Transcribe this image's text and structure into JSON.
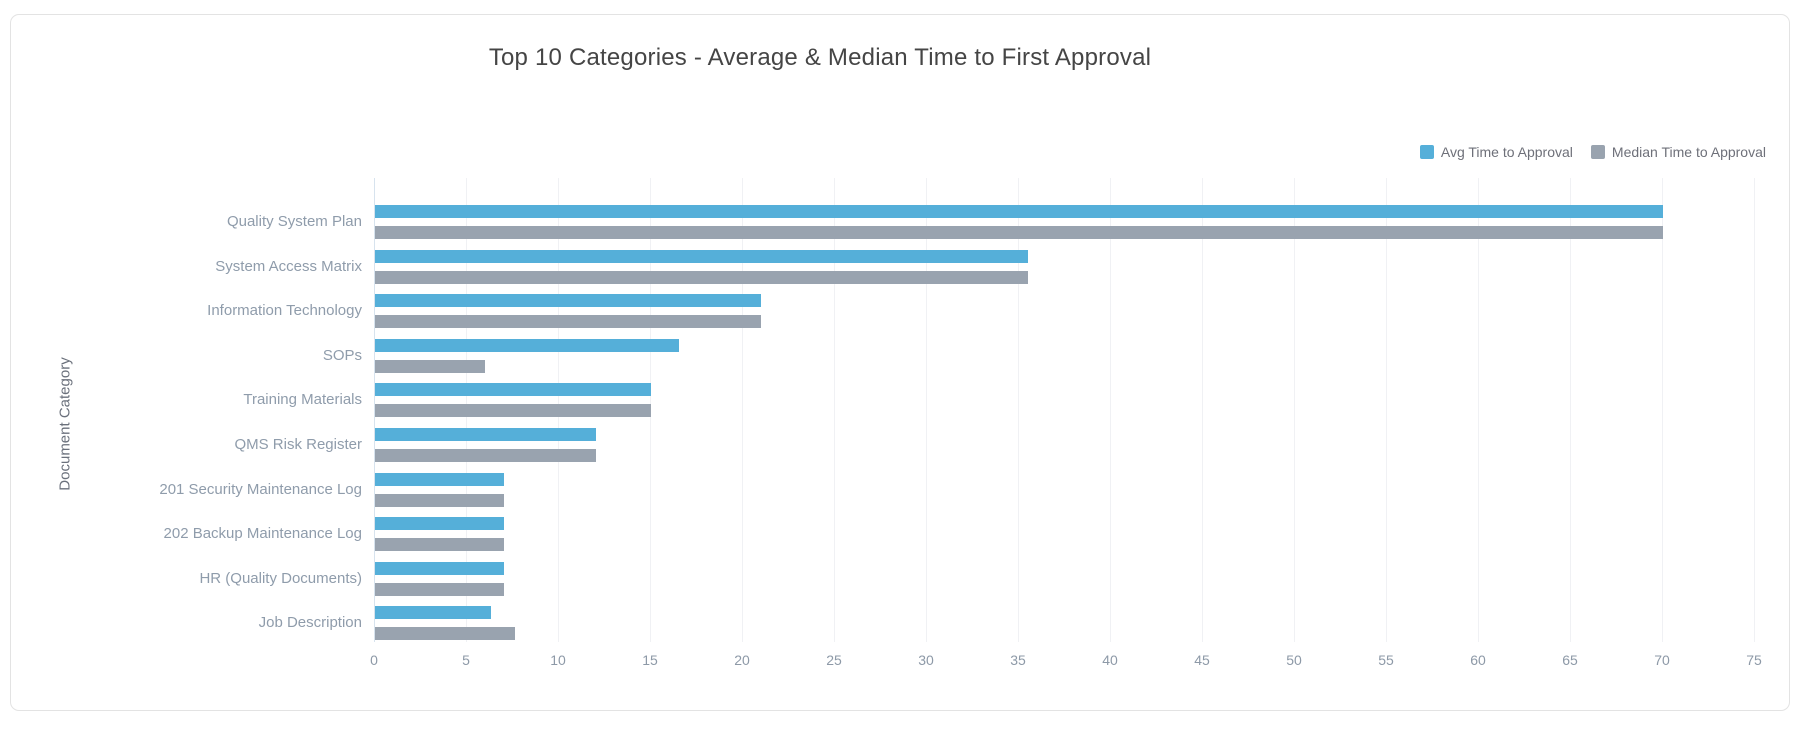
{
  "chart_data": {
    "type": "bar",
    "orientation": "horizontal",
    "title": "Top 10 Categories - Average & Median Time to First Approval",
    "ylabel": "Document Category",
    "xlabel": "",
    "categories": [
      "Quality System Plan",
      "System Access Matrix",
      "Information Technology",
      "SOPs",
      "Training Materials",
      "QMS Risk Register",
      "201 Security Maintenance Log",
      "202 Backup Maintenance Log",
      "HR (Quality Documents)",
      "Job Description"
    ],
    "series": [
      {
        "name": "Avg Time to Approval",
        "color": "#55AFD9",
        "values": [
          70,
          35.5,
          21,
          16.5,
          15,
          12,
          7,
          7,
          7,
          6.3
        ]
      },
      {
        "name": "Median Time to Approval",
        "color": "#99A3AF",
        "values": [
          70,
          35.5,
          21,
          6,
          15,
          12,
          7,
          7,
          7,
          7.6
        ]
      }
    ],
    "xlim": [
      0,
      75
    ],
    "xticks": [
      0,
      5,
      10,
      15,
      20,
      25,
      30,
      35,
      40,
      45,
      50,
      55,
      60,
      65,
      70,
      75
    ],
    "grid": true,
    "legend_position": "top-right",
    "colors": {
      "axis_line": "#d7e3ee",
      "grid_line": "#f0f1f4",
      "tick_label": "#8d99a7",
      "category_label": "#8f9cab",
      "title": "#454545",
      "axis_name": "#6b717c",
      "legend_text": "#6e7079",
      "card_border": "#e3e3e3",
      "background": "#ffffff"
    }
  }
}
